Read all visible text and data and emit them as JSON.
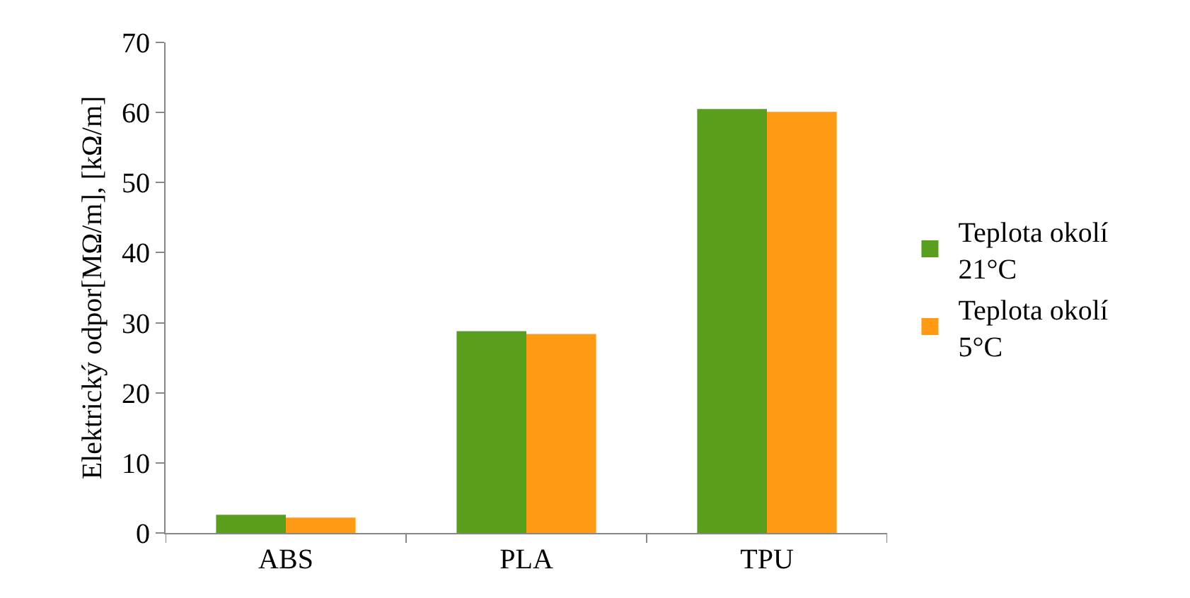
{
  "chart_data": {
    "type": "bar",
    "ylabel": "Elektrický odpor[MΩ/m], [kΩ/m]",
    "categories": [
      "ABS",
      "PLA",
      "TPU"
    ],
    "series": [
      {
        "name": "Teplota okolí 21°C",
        "color": "#5a9e1e",
        "values": [
          2.6,
          28.8,
          60.5
        ]
      },
      {
        "name": "Teplota okolí 5°C",
        "color": "#ff9a14",
        "values": [
          2.2,
          28.4,
          60.1
        ]
      }
    ],
    "ylim": [
      0,
      70
    ],
    "yticks": [
      0,
      10,
      20,
      30,
      40,
      50,
      60,
      70
    ],
    "grid": false,
    "legend": "right"
  }
}
